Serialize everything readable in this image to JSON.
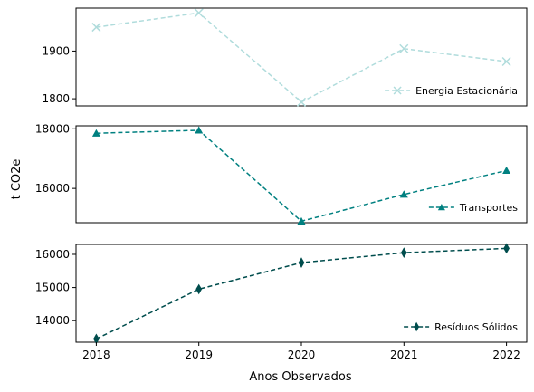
{
  "chart_data": {
    "type": "line",
    "xlabel": "Anos Observados",
    "ylabel": "t CO2e",
    "x": [
      2018,
      2019,
      2020,
      2021,
      2022
    ],
    "panels": [
      {
        "name": "Energia Estacionária",
        "color": "#b0dcdc",
        "marker": "x",
        "values": [
          1950,
          1980,
          1793,
          1905,
          1878
        ],
        "ylim": [
          1785,
          1990
        ],
        "yticks": [
          1800,
          1900
        ],
        "legend": "lower right"
      },
      {
        "name": "Transportes",
        "color": "#008080",
        "marker": "triangle",
        "values": [
          17850,
          17950,
          14900,
          15800,
          16600
        ],
        "ylim": [
          14850,
          18100
        ],
        "yticks": [
          16000,
          18000
        ],
        "legend": "lower right"
      },
      {
        "name": "Resíduos Sólidos",
        "color": "#004d4d",
        "marker": "diamond",
        "values": [
          13450,
          14950,
          15750,
          16050,
          16180
        ],
        "ylim": [
          13350,
          16300
        ],
        "yticks": [
          14000,
          15000,
          16000
        ],
        "legend": "lower right"
      }
    ]
  }
}
